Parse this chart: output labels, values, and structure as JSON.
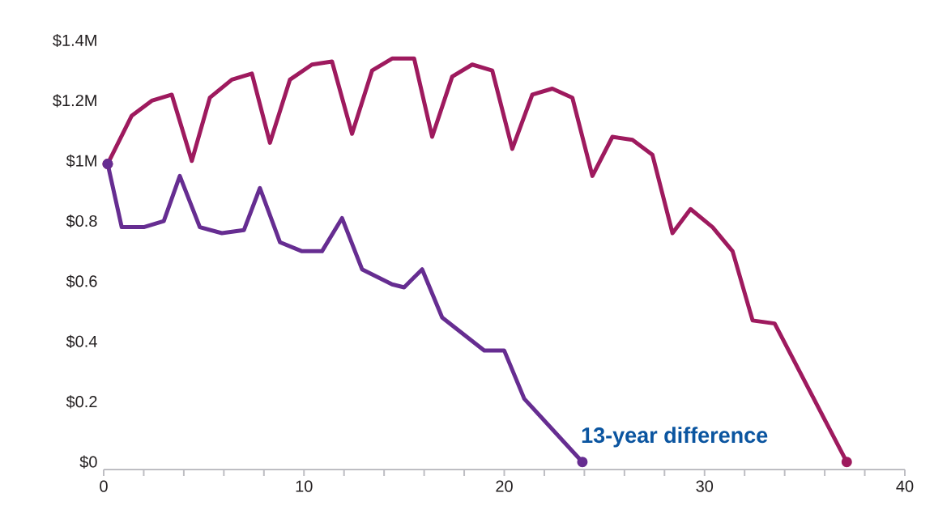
{
  "chart_data": {
    "type": "line",
    "xlim": [
      0,
      40
    ],
    "xticks": [
      0,
      {
        "value": 2,
        "label": null
      },
      {
        "value": 4,
        "label": null
      },
      {
        "value": 6,
        "label": null
      },
      {
        "value": 8,
        "label": null
      },
      10,
      {
        "value": 12,
        "label": null
      },
      {
        "value": 14,
        "label": null
      },
      {
        "value": 16,
        "label": null
      },
      {
        "value": 18,
        "label": null
      },
      20,
      {
        "value": 22,
        "label": null
      },
      {
        "value": 24,
        "label": null
      },
      {
        "value": 26,
        "label": null
      },
      {
        "value": 28,
        "label": null
      },
      30,
      {
        "value": 32,
        "label": null
      },
      {
        "value": 34,
        "label": null
      },
      {
        "value": 36,
        "label": null
      },
      {
        "value": 38,
        "label": null
      },
      40
    ],
    "ylim": [
      -0.025,
      1.4
    ],
    "yticks": [
      {
        "value": 0,
        "label": "$0"
      },
      {
        "value": 0.2,
        "label": "$0.2"
      },
      {
        "value": 0.4,
        "label": "$0.4"
      },
      {
        "value": 0.6,
        "label": "$0.6"
      },
      {
        "value": 0.8,
        "label": "$0.8"
      },
      {
        "value": 1.0,
        "label": "$1M"
      },
      {
        "value": 1.2,
        "label": "$1.2M"
      },
      {
        "value": 1.4,
        "label": "$1.4M"
      }
    ],
    "series": [
      {
        "color": "#662d91",
        "x": [
          0.2,
          0.9,
          2.0,
          3.0,
          3.8,
          4.8,
          5.9,
          7.0,
          7.8,
          8.8,
          9.9,
          10.9,
          11.9,
          12.9,
          14.4,
          15.0,
          15.9,
          16.9,
          19.0,
          20.0,
          21.0,
          23.9
        ],
        "values": [
          0.99,
          0.78,
          0.78,
          0.8,
          0.95,
          0.78,
          0.76,
          0.77,
          0.91,
          0.73,
          0.7,
          0.7,
          0.81,
          0.64,
          0.59,
          0.58,
          0.64,
          0.48,
          0.37,
          0.37,
          0.21,
          0.0
        ]
      },
      {
        "color": "#9e1a5e",
        "x": [
          0.2,
          1.4,
          2.4,
          3.4,
          4.4,
          5.3,
          6.4,
          7.4,
          8.3,
          9.3,
          10.4,
          11.4,
          12.4,
          13.4,
          14.4,
          15.5,
          16.4,
          17.4,
          18.4,
          19.4,
          20.4,
          21.4,
          22.4,
          23.4,
          24.4,
          25.4,
          26.4,
          27.4,
          28.4,
          29.3,
          30.4,
          31.4,
          32.4,
          33.5,
          37.1
        ],
        "values": [
          0.99,
          1.15,
          1.2,
          1.22,
          1.0,
          1.21,
          1.27,
          1.29,
          1.06,
          1.27,
          1.32,
          1.33,
          1.09,
          1.3,
          1.34,
          1.34,
          1.08,
          1.28,
          1.32,
          1.3,
          1.04,
          1.22,
          1.24,
          1.21,
          0.95,
          1.08,
          1.07,
          1.02,
          0.76,
          0.84,
          0.78,
          0.7,
          0.47,
          0.46,
          0.0
        ]
      }
    ],
    "annotations": [
      "13-year difference"
    ]
  }
}
